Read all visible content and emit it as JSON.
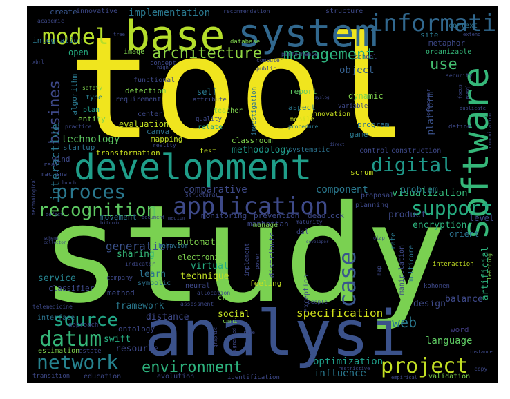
{
  "background_color": "#000000",
  "words": [
    {
      "text": "tool",
      "color": "#f0e51e"
    },
    {
      "text": "study",
      "color": "#7ad151"
    },
    {
      "text": "development",
      "color": "#1f9e89"
    },
    {
      "text": "analysi",
      "color": "#3b528b"
    },
    {
      "text": "base",
      "color": "#b5de2b"
    },
    {
      "text": "system",
      "color": "#31688e"
    },
    {
      "text": "software",
      "color": "#35b779"
    },
    {
      "text": "application",
      "color": "#3e4a89"
    },
    {
      "text": "information",
      "color": "#31688e"
    },
    {
      "text": "model",
      "color": "#b5de2b"
    },
    {
      "text": "architecture",
      "color": "#90d743"
    },
    {
      "text": "management",
      "color": "#2db27d"
    },
    {
      "text": "busines",
      "color": "#3e4989"
    },
    {
      "text": "proces",
      "color": "#2a788e"
    },
    {
      "text": "recognition",
      "color": "#5ec962"
    },
    {
      "text": "digital",
      "color": "#1f9a8a"
    },
    {
      "text": "support",
      "color": "#26ad81"
    },
    {
      "text": "source",
      "color": "#21a585"
    },
    {
      "text": "datum",
      "color": "#35b779"
    },
    {
      "text": "network",
      "color": "#26828e"
    },
    {
      "text": "environment",
      "color": "#2db27d"
    },
    {
      "text": "project",
      "color": "#c2df23"
    },
    {
      "text": "web",
      "color": "#2a788e"
    },
    {
      "text": "case",
      "color": "#39568c"
    },
    {
      "text": "use",
      "color": "#44bf70"
    },
    {
      "text": "object",
      "color": "#355f8d"
    },
    {
      "text": "interactive",
      "color": "#2a788e"
    },
    {
      "text": "technology",
      "color": "#5ec962"
    },
    {
      "text": "generation",
      "color": "#3b528b"
    },
    {
      "text": "specification",
      "color": "#d2e21b"
    },
    {
      "text": "language",
      "color": "#5ec962"
    },
    {
      "text": "optimization",
      "color": "#1f9e89"
    },
    {
      "text": "influence",
      "color": "#2a788e"
    },
    {
      "text": "visualization",
      "color": "#35b779"
    },
    {
      "text": "comparative",
      "color": "#3e4a89"
    },
    {
      "text": "component",
      "color": "#2a788e"
    },
    {
      "text": "problem",
      "color": "#287d8e"
    },
    {
      "text": "product",
      "color": "#3e4a89"
    },
    {
      "text": "platform",
      "color": "#3b528b"
    },
    {
      "text": "methodology",
      "color": "#1f9a8a"
    },
    {
      "text": "transformation",
      "color": "#cae11f"
    },
    {
      "text": "automatic",
      "color": "#7fd34e"
    },
    {
      "text": "sharing",
      "color": "#35b779"
    },
    {
      "text": "virtual",
      "color": "#26ad81"
    },
    {
      "text": "technique",
      "color": "#c0df25"
    },
    {
      "text": "service",
      "color": "#26828e"
    },
    {
      "text": "classifier",
      "color": "#3e4989"
    },
    {
      "text": "framework",
      "color": "#2a788e"
    },
    {
      "text": "distance",
      "color": "#3e4989"
    },
    {
      "text": "social",
      "color": "#c2df23"
    },
    {
      "text": "swift",
      "color": "#26ad81"
    },
    {
      "text": "resource",
      "color": "#3e4989"
    },
    {
      "text": "method",
      "color": "#3e4a89"
    },
    {
      "text": "ontology",
      "color": "#3e4989"
    },
    {
      "text": "learn",
      "color": "#2c728e"
    },
    {
      "text": "design",
      "color": "#3e4a89"
    },
    {
      "text": "encryption",
      "color": "#2db27d"
    },
    {
      "text": "level",
      "color": "#3e4989"
    },
    {
      "text": "orient",
      "color": "#2c728e"
    },
    {
      "text": "artificial",
      "color": "#2db27d"
    },
    {
      "text": "balance",
      "color": "#3e4989"
    },
    {
      "text": "word",
      "color": "#433e85"
    },
    {
      "text": "dynamic",
      "color": "#7fd34e"
    },
    {
      "text": "report",
      "color": "#5ec962"
    },
    {
      "text": "game",
      "color": "#2a788e"
    },
    {
      "text": "program",
      "color": "#2c728e"
    },
    {
      "text": "aspect",
      "color": "#2a788e"
    },
    {
      "text": "self",
      "color": "#2a788e"
    },
    {
      "text": "concept",
      "color": "#3e4989"
    },
    {
      "text": "open",
      "color": "#26ad81"
    },
    {
      "text": "image",
      "color": "#7fd34e"
    },
    {
      "text": "algorithm",
      "color": "#2a788e"
    },
    {
      "text": "entity",
      "color": "#7fd34e"
    },
    {
      "text": "type",
      "color": "#287d8e"
    },
    {
      "text": "plan",
      "color": "#1f9e89"
    },
    {
      "text": "implementation",
      "color": "#2a788e"
    },
    {
      "text": "create",
      "color": "#39568c"
    },
    {
      "text": "innovative",
      "color": "#3e4989"
    },
    {
      "text": "integration",
      "color": "#2a788e"
    },
    {
      "text": "site",
      "color": "#2a788e"
    },
    {
      "text": "context",
      "color": "#2c728e"
    },
    {
      "text": "metaphor",
      "color": "#3e4989"
    },
    {
      "text": "organizable",
      "color": "#35b779"
    },
    {
      "text": "structure",
      "color": "#3e4989"
    },
    {
      "text": "school",
      "color": "#3e4989"
    },
    {
      "text": "classroom",
      "color": "#7fd34e"
    },
    {
      "text": "manhattan",
      "color": "#3e4989"
    },
    {
      "text": "scrum",
      "color": "#c8e020"
    },
    {
      "text": "planning",
      "color": "#3e4989"
    },
    {
      "text": "proposal",
      "color": "#3e4989"
    },
    {
      "text": "deadlock",
      "color": "#3e4989"
    },
    {
      "text": "prevention",
      "color": "#3e4989"
    },
    {
      "text": "monitoring",
      "color": "#3e4989"
    },
    {
      "text": "movement",
      "color": "#2c728e"
    },
    {
      "text": "evaluation",
      "color": "#c2df23"
    },
    {
      "text": "detection",
      "color": "#7fd34e"
    },
    {
      "text": "requirement",
      "color": "#3e4989"
    },
    {
      "text": "functional",
      "color": "#3e4989"
    },
    {
      "text": "teacher",
      "color": "#7fd34e"
    },
    {
      "text": "quality",
      "color": "#3e4989"
    },
    {
      "text": "relate",
      "color": "#1f9e89"
    },
    {
      "text": "canva",
      "color": "#2c728e"
    },
    {
      "text": "mapping",
      "color": "#c2df23"
    },
    {
      "text": "reality",
      "color": "#3e4989"
    },
    {
      "text": "center",
      "color": "#3e4989"
    },
    {
      "text": "attribute",
      "color": "#3e4989"
    },
    {
      "text": "investigation",
      "color": "#2c728e"
    },
    {
      "text": "mobile",
      "color": "#c8e020"
    },
    {
      "text": "procedure",
      "color": "#2a788e"
    },
    {
      "text": "innovation",
      "color": "#c8e020"
    },
    {
      "text": "variable",
      "color": "#3e4989"
    },
    {
      "text": "control",
      "color": "#3e4989"
    },
    {
      "text": "construction",
      "color": "#3e4989"
    },
    {
      "text": "test",
      "color": "#c2df23"
    },
    {
      "text": "systematic",
      "color": "#2c728e"
    },
    {
      "text": "startup",
      "color": "#2c728e"
    },
    {
      "text": "wind",
      "color": "#3e4989"
    },
    {
      "text": "machine",
      "color": "#3e4989"
    },
    {
      "text": "real",
      "color": "#3e4989"
    },
    {
      "text": "lunch",
      "color": "#3e4989"
    },
    {
      "text": "bitcoin",
      "color": "#3e4989"
    },
    {
      "text": "defect",
      "color": "#3e4989"
    },
    {
      "text": "technological",
      "color": "#3e4989"
    },
    {
      "text": "structural",
      "color": "#3e4989"
    },
    {
      "text": "document",
      "color": "#3e4989"
    },
    {
      "text": "medium",
      "color": "#3e4989"
    },
    {
      "text": "manage",
      "color": "#7fd34e"
    },
    {
      "text": "maturity",
      "color": "#3e4989"
    },
    {
      "text": "dsl",
      "color": "#3e4989"
    },
    {
      "text": "olap",
      "color": "#3e4989"
    },
    {
      "text": "rate",
      "color": "#2a788e"
    },
    {
      "text": "exception",
      "color": "#3e4989"
    },
    {
      "text": "distribute",
      "color": "#3e4989"
    },
    {
      "text": "feeling",
      "color": "#c2df23"
    },
    {
      "text": "implement",
      "color": "#3e4989"
    },
    {
      "text": "power",
      "color": "#3e4989"
    },
    {
      "text": "electronic",
      "color": "#7fd34e"
    },
    {
      "text": "behavior",
      "color": "#2c728e"
    },
    {
      "text": "indicator",
      "color": "#3e4989"
    },
    {
      "text": "company",
      "color": "#3e4989"
    },
    {
      "text": "symbolic",
      "color": "#2c728e"
    },
    {
      "text": "neural",
      "color": "#3e4989"
    },
    {
      "text": "assessment",
      "color": "#3e4989"
    },
    {
      "text": "allocation",
      "color": "#3e4989"
    },
    {
      "text": "cros",
      "color": "#7fd34e"
    },
    {
      "text": "cmmi",
      "color": "#7fd34e"
    },
    {
      "text": "people",
      "color": "#3e4989"
    },
    {
      "text": "kohonen",
      "color": "#3e4989"
    },
    {
      "text": "manipulation",
      "color": "#3e4989"
    },
    {
      "text": "multicore",
      "color": "#2c728e"
    },
    {
      "text": "map",
      "color": "#3e4989"
    },
    {
      "text": "interaction",
      "color": "#c2df23"
    },
    {
      "text": "telemedicine",
      "color": "#3e4989"
    },
    {
      "text": "interface",
      "color": "#2c728e"
    },
    {
      "text": "approach",
      "color": "#3e4989"
    },
    {
      "text": "estimation",
      "color": "#7fd34e"
    },
    {
      "text": "estate",
      "color": "#3e4989"
    },
    {
      "text": "transition",
      "color": "#3e4989"
    },
    {
      "text": "education",
      "color": "#3e4989"
    },
    {
      "text": "evolution",
      "color": "#3e4989"
    },
    {
      "text": "identification",
      "color": "#3e4989"
    },
    {
      "text": "graphic",
      "color": "#3e4989"
    },
    {
      "text": "augmented",
      "color": "#3e4989"
    },
    {
      "text": "rule",
      "color": "#3e4989"
    },
    {
      "text": "restrictive",
      "color": "#3e4989"
    },
    {
      "text": "empirical",
      "color": "#3e4989"
    },
    {
      "text": "validation",
      "color": "#7fd34e"
    },
    {
      "text": "copy",
      "color": "#3e4989"
    },
    {
      "text": "instance",
      "color": "#3e4989"
    },
    {
      "text": "tree",
      "color": "#3e4989"
    },
    {
      "text": "database",
      "color": "#7fd34e"
    },
    {
      "text": "recommendation",
      "color": "#3e4989"
    },
    {
      "text": "performance",
      "color": "#3e4989"
    },
    {
      "text": "computer",
      "color": "#3e4989"
    },
    {
      "text": "public",
      "color": "#3e4989"
    },
    {
      "text": "high",
      "color": "#3e4989"
    },
    {
      "text": "xbrl",
      "color": "#3e4989"
    },
    {
      "text": "academic",
      "color": "#3e4989"
    },
    {
      "text": "safety",
      "color": "#7fd34e"
    },
    {
      "text": "practice",
      "color": "#3e4989"
    },
    {
      "text": "extend",
      "color": "#3e4989"
    },
    {
      "text": "security",
      "color": "#3e4989"
    },
    {
      "text": "focus",
      "color": "#3e4989"
    },
    {
      "text": "processor",
      "color": "#3e4989"
    },
    {
      "text": "duplicate",
      "color": "#3e4989"
    },
    {
      "text": "define",
      "color": "#3e4989"
    },
    {
      "text": "communication",
      "color": "#3e4989"
    },
    {
      "text": "mysql",
      "color": "#3e4989"
    },
    {
      "text": "learning",
      "color": "#7fd34e"
    },
    {
      "text": "developer",
      "color": "#3e4989"
    },
    {
      "text": "direct",
      "color": "#3e4989"
    },
    {
      "text": "syslog",
      "color": "#3e4989"
    },
    {
      "text": "scheme",
      "color": "#3e4989"
    },
    {
      "text": "collector",
      "color": "#3e4989"
    }
  ]
}
